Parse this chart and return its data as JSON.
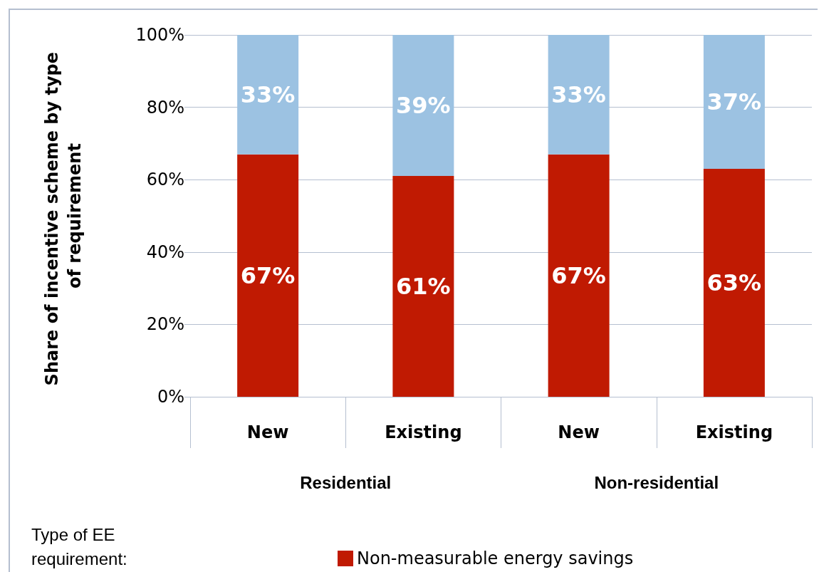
{
  "chart_data": {
    "type": "bar",
    "stacked": true,
    "ylabel": "Share of incentive scheme by type of requirement",
    "legend_title": "Type of EE requirement:",
    "categories": [
      "New",
      "Existing",
      "New",
      "Existing"
    ],
    "series": [
      {
        "name": "Non-measurable energy savings",
        "color": "#c01a02",
        "values": [
          67,
          61,
          67,
          63
        ],
        "value_labels": [
          "67%",
          "61%",
          "67%",
          "63%"
        ]
      },
      {
        "color": "#9cc2e2",
        "values": [
          33,
          39,
          33,
          37
        ],
        "value_labels": [
          "33%",
          "39%",
          "33%",
          "37%"
        ]
      }
    ],
    "ylim": [
      0,
      100
    ],
    "yticks": [
      {
        "value": 0,
        "label": "0%"
      },
      {
        "value": 20,
        "label": "20%"
      },
      {
        "value": 40,
        "label": "40%"
      },
      {
        "value": 60,
        "label": "60%"
      },
      {
        "value": 80,
        "label": "80%"
      },
      {
        "value": 100,
        "label": "100%"
      }
    ],
    "annotations": [
      "Residential",
      "Non-residential"
    ],
    "grid": "y",
    "legend": "bottom"
  }
}
